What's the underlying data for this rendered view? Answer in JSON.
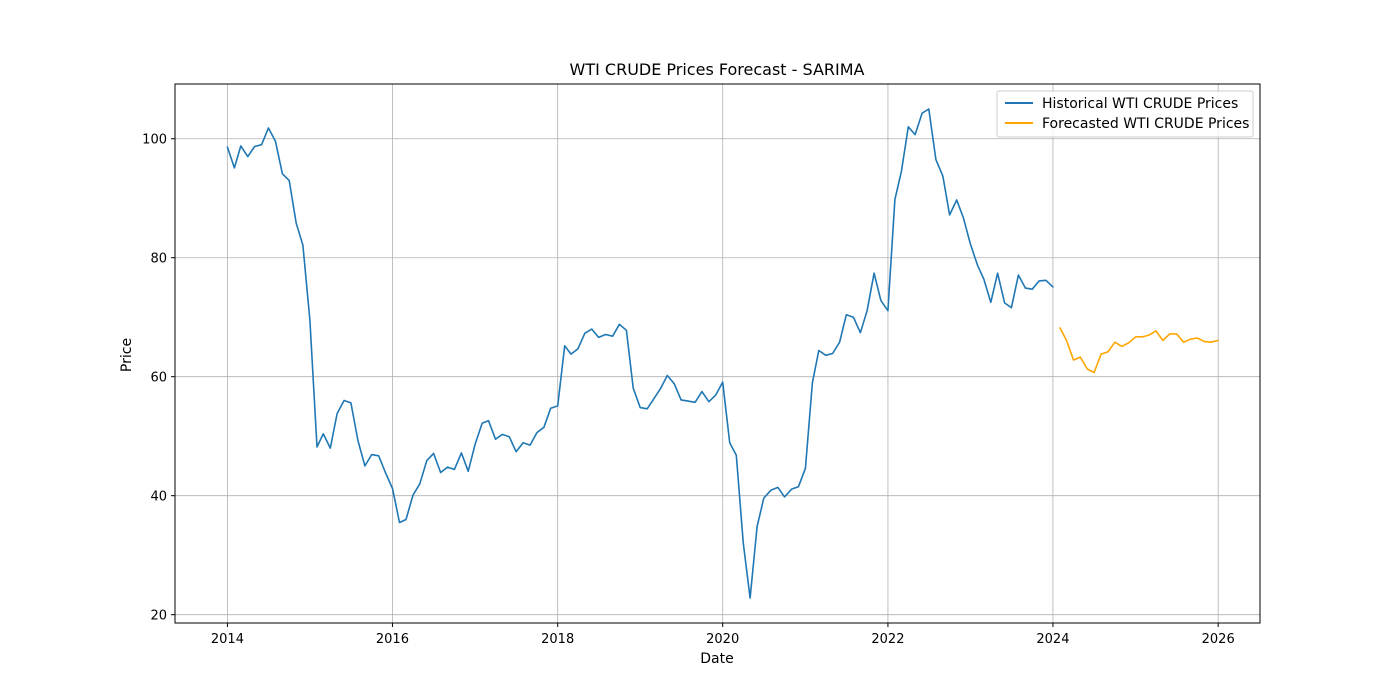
{
  "chart_data": {
    "type": "line",
    "title": "WTI CRUDE Prices Forecast - SARIMA",
    "xlabel": "Date",
    "ylabel": "Price",
    "xlim": [
      "2013-05-14",
      "2026-07-05"
    ],
    "ylim": [
      18.6,
      109.2
    ],
    "x_ticks": [
      "2014",
      "2016",
      "2018",
      "2020",
      "2022",
      "2024",
      "2026"
    ],
    "y_ticks": [
      20,
      40,
      60,
      80,
      100
    ],
    "grid": true,
    "legend_position": "top-right",
    "colors": {
      "historical": "#1f77b4",
      "forecast": "#ffa500"
    },
    "series": [
      {
        "name": "Historical WTI CRUDE Prices",
        "color": "#1f77b4",
        "start_month": "2014-01",
        "values": [
          98.6,
          95.1,
          98.8,
          97.0,
          98.7,
          99.0,
          101.8,
          99.6,
          94.1,
          93.0,
          85.8,
          82.1,
          69.5,
          48.2,
          50.4,
          48.0,
          53.8,
          56.0,
          55.6,
          49.3,
          45.0,
          46.9,
          46.7,
          43.9,
          41.2,
          35.5,
          36.0,
          40.1,
          42.0,
          45.9,
          47.1,
          43.9,
          44.8,
          44.4,
          47.2,
          44.1,
          48.7,
          52.2,
          52.6,
          49.5,
          50.3,
          49.9,
          47.4,
          48.9,
          48.5,
          50.6,
          51.5,
          54.7,
          55.1,
          65.2,
          63.8,
          64.7,
          67.3,
          68.0,
          66.6,
          67.1,
          66.8,
          68.8,
          67.8,
          58.1,
          54.8,
          54.6,
          56.2,
          58.0,
          60.2,
          58.8,
          56.1,
          55.9,
          55.7,
          57.5,
          55.8,
          56.9,
          59.1,
          48.9,
          46.8,
          32.0,
          22.8,
          34.8,
          39.6,
          40.9,
          41.4,
          39.8,
          41.1,
          41.5,
          44.6,
          59.0,
          64.4,
          63.6,
          63.9,
          65.8,
          70.4,
          70.0,
          67.4,
          71.1,
          77.4,
          72.8,
          71.1,
          89.8,
          94.4,
          102.0,
          100.7,
          104.3,
          105.0,
          96.5,
          93.7,
          87.2,
          89.7,
          86.7,
          82.3,
          78.8,
          76.4,
          72.5,
          77.4,
          72.4,
          71.6,
          77.1,
          74.9,
          74.7,
          76.1,
          76.2,
          75.1
        ]
      },
      {
        "name": "Forecasted WTI CRUDE Prices",
        "color": "#ffa500",
        "start_month": "2024-02",
        "values": [
          68.2,
          66.1,
          62.8,
          63.3,
          61.3,
          60.7,
          63.8,
          64.2,
          65.8,
          65.1,
          65.7,
          66.7,
          66.7,
          67.0,
          67.7,
          66.1,
          67.2,
          67.2,
          65.8,
          66.3,
          66.5,
          65.9,
          65.8,
          66.1
        ]
      }
    ]
  }
}
